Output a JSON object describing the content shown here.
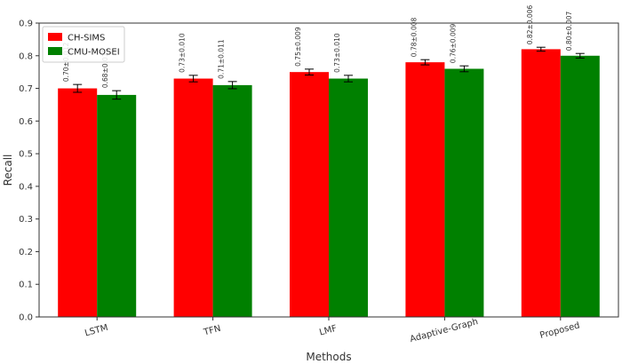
{
  "chart_data": {
    "type": "bar",
    "title": "",
    "xlabel": "Methods",
    "ylabel": "Recall",
    "categories": [
      "LSTM",
      "TFN",
      "LMF",
      "Adaptive-Graph",
      "Proposed"
    ],
    "ylim": [
      0,
      0.9
    ],
    "yticks": [
      0.0,
      0.1,
      0.2,
      0.3,
      0.4,
      0.5,
      0.6,
      0.7,
      0.8,
      0.9
    ],
    "ytick_labels": [
      "0.0",
      "0.1",
      "0.2",
      "0.3",
      "0.4",
      "0.5",
      "0.6",
      "0.7",
      "0.8",
      "0.9"
    ],
    "grid": false,
    "legend_position": "top-left",
    "series": [
      {
        "name": "CH-SIMS",
        "color": "#ff0000",
        "values": [
          0.7,
          0.73,
          0.75,
          0.78,
          0.82
        ],
        "errors": [
          0.012,
          0.01,
          0.009,
          0.008,
          0.006
        ],
        "labels": [
          "0.70±0.012",
          "0.73±0.010",
          "0.75±0.009",
          "0.78±0.008",
          "0.82±0.006"
        ]
      },
      {
        "name": "CMU-MOSEI",
        "color": "#008000",
        "values": [
          0.68,
          0.71,
          0.73,
          0.76,
          0.8
        ],
        "errors": [
          0.013,
          0.011,
          0.01,
          0.009,
          0.007
        ],
        "labels": [
          "0.68±0.013",
          "0.71±0.011",
          "0.73±0.010",
          "0.76±0.009",
          "0.80±0.007"
        ]
      }
    ]
  }
}
